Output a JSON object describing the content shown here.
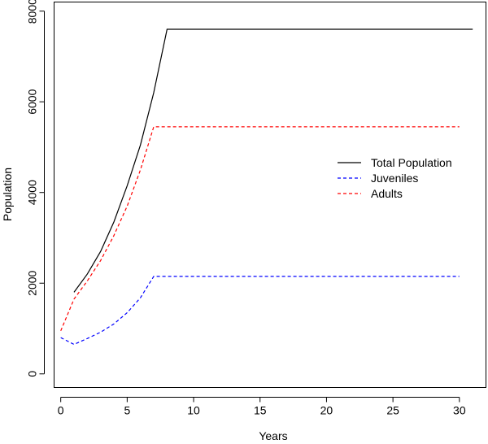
{
  "chart_data": {
    "type": "line",
    "title": "",
    "xlabel": "Years",
    "ylabel": "Population",
    "xlim": [
      -0.5,
      32
    ],
    "ylim": [
      -300,
      8200
    ],
    "xticks": [
      0,
      5,
      10,
      15,
      20,
      25,
      30
    ],
    "yticks": [
      0,
      2000,
      4000,
      6000,
      8000
    ],
    "legend_position": "center-right",
    "series": [
      {
        "name": "Total Population",
        "color": "#000000",
        "dash": "solid",
        "x": [
          1,
          2,
          3,
          4,
          5,
          6,
          7,
          8,
          31
        ],
        "y": [
          1800,
          2200,
          2700,
          3350,
          4150,
          5050,
          6200,
          7600,
          7600
        ]
      },
      {
        "name": "Juveniles",
        "color": "#0000ff",
        "dash": "dashed",
        "x": [
          0,
          1,
          2,
          3,
          4,
          5,
          6,
          7,
          30
        ],
        "y": [
          800,
          650,
          780,
          920,
          1100,
          1350,
          1680,
          2150,
          2150
        ]
      },
      {
        "name": "Adults",
        "color": "#ff0000",
        "dash": "dashed",
        "x": [
          0,
          1,
          2,
          3,
          4,
          5,
          6,
          7,
          30
        ],
        "y": [
          950,
          1650,
          2050,
          2500,
          3050,
          3700,
          4500,
          5450,
          5450
        ]
      }
    ]
  }
}
